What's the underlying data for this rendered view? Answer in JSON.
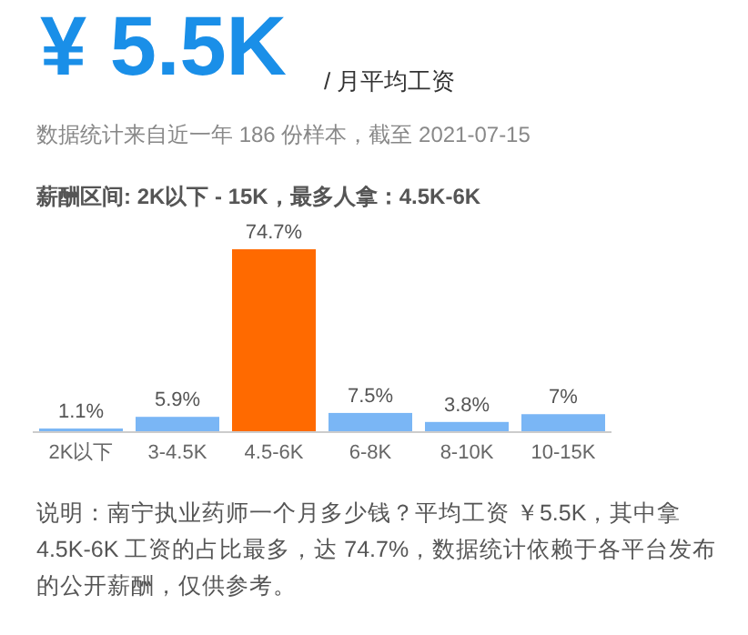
{
  "chart_data": {
    "type": "bar",
    "title": "¥ 5.5K",
    "subtitle": "/ 月平均工资",
    "annotations": [
      "数据统计来自近一年 186 份样本，截至 2021-07-15",
      "薪酬区间: 2K以下 - 15K，最多人拿：4.5K-6K",
      "说明：南宁执业药师一个月多少钱？平均工资 ￥5.5K，其中拿 4.5K-6K 工资的占比最多，达 74.7%，数据统计依赖于各平台发布的公开薪酬，仅供参考。"
    ],
    "categories": [
      "2K以下",
      "3-4.5K",
      "4.5-6K",
      "6-8K",
      "8-10K",
      "10-15K"
    ],
    "values": [
      1.1,
      5.9,
      74.7,
      7.5,
      3.8,
      7
    ],
    "value_labels": [
      "1.1%",
      "5.9%",
      "74.7%",
      "7.5%",
      "3.8%",
      "7%"
    ],
    "colors": [
      "#7ab6f5",
      "#7ab6f5",
      "#ff6a00",
      "#7ab6f5",
      "#7ab6f5",
      "#7ab6f5"
    ]
  }
}
